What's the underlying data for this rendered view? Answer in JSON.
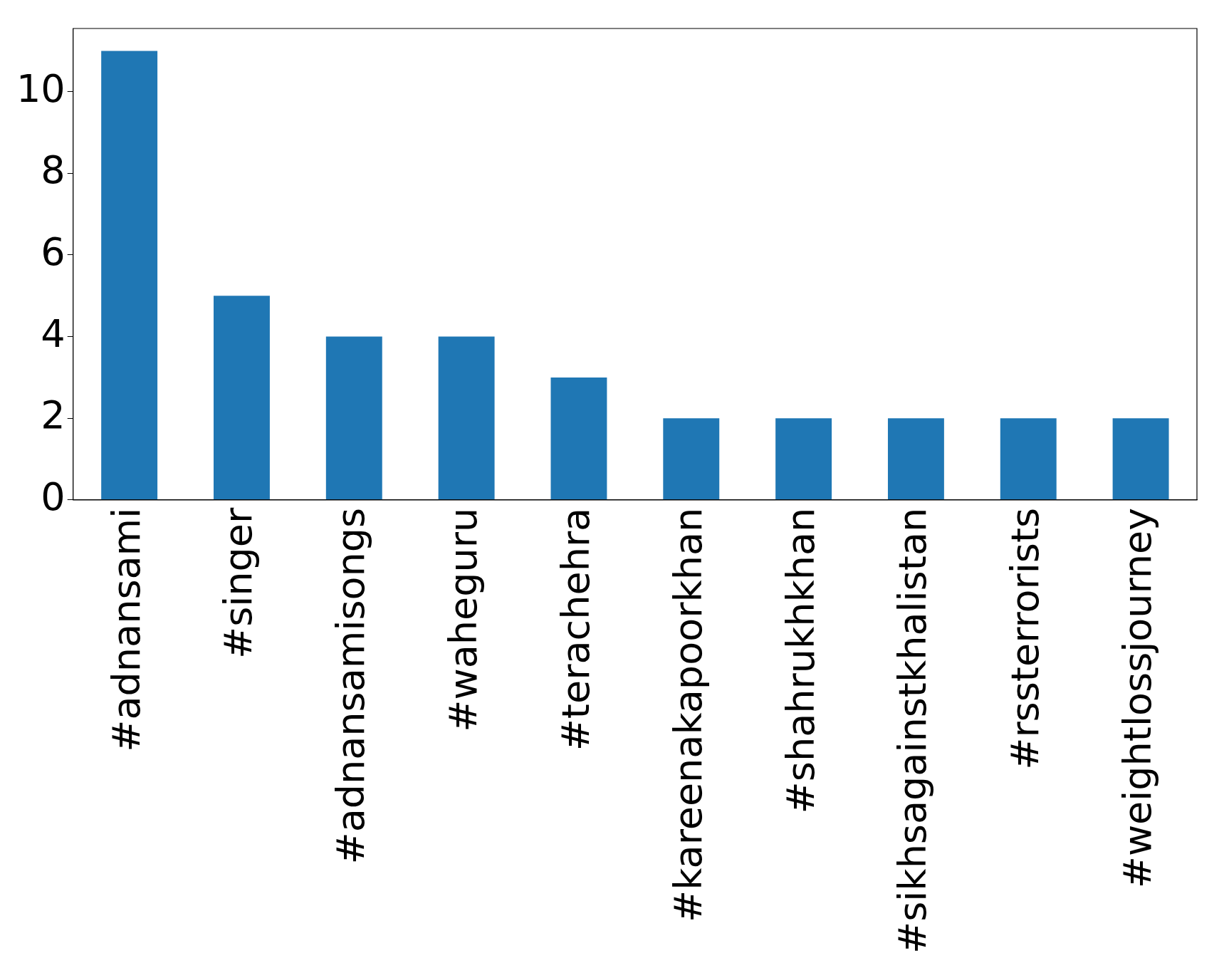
{
  "chart_data": {
    "type": "bar",
    "categories": [
      "#adnansami",
      "#singer",
      "#adnansamisongs",
      "#waheguru",
      "#terachehra",
      "#kareenakapoorkhan",
      "#shahrukhkhan",
      "#sikhsagainstkhalistan",
      "#rssterrorists",
      "#weightlossjourney"
    ],
    "values": [
      11,
      5,
      4,
      4,
      3,
      2,
      2,
      2,
      2,
      2
    ],
    "color": "#1f77b4",
    "ylim": [
      0,
      11.55
    ],
    "yticks": [
      0,
      2,
      4,
      6,
      8,
      10
    ],
    "grid": false,
    "legend": false
  }
}
